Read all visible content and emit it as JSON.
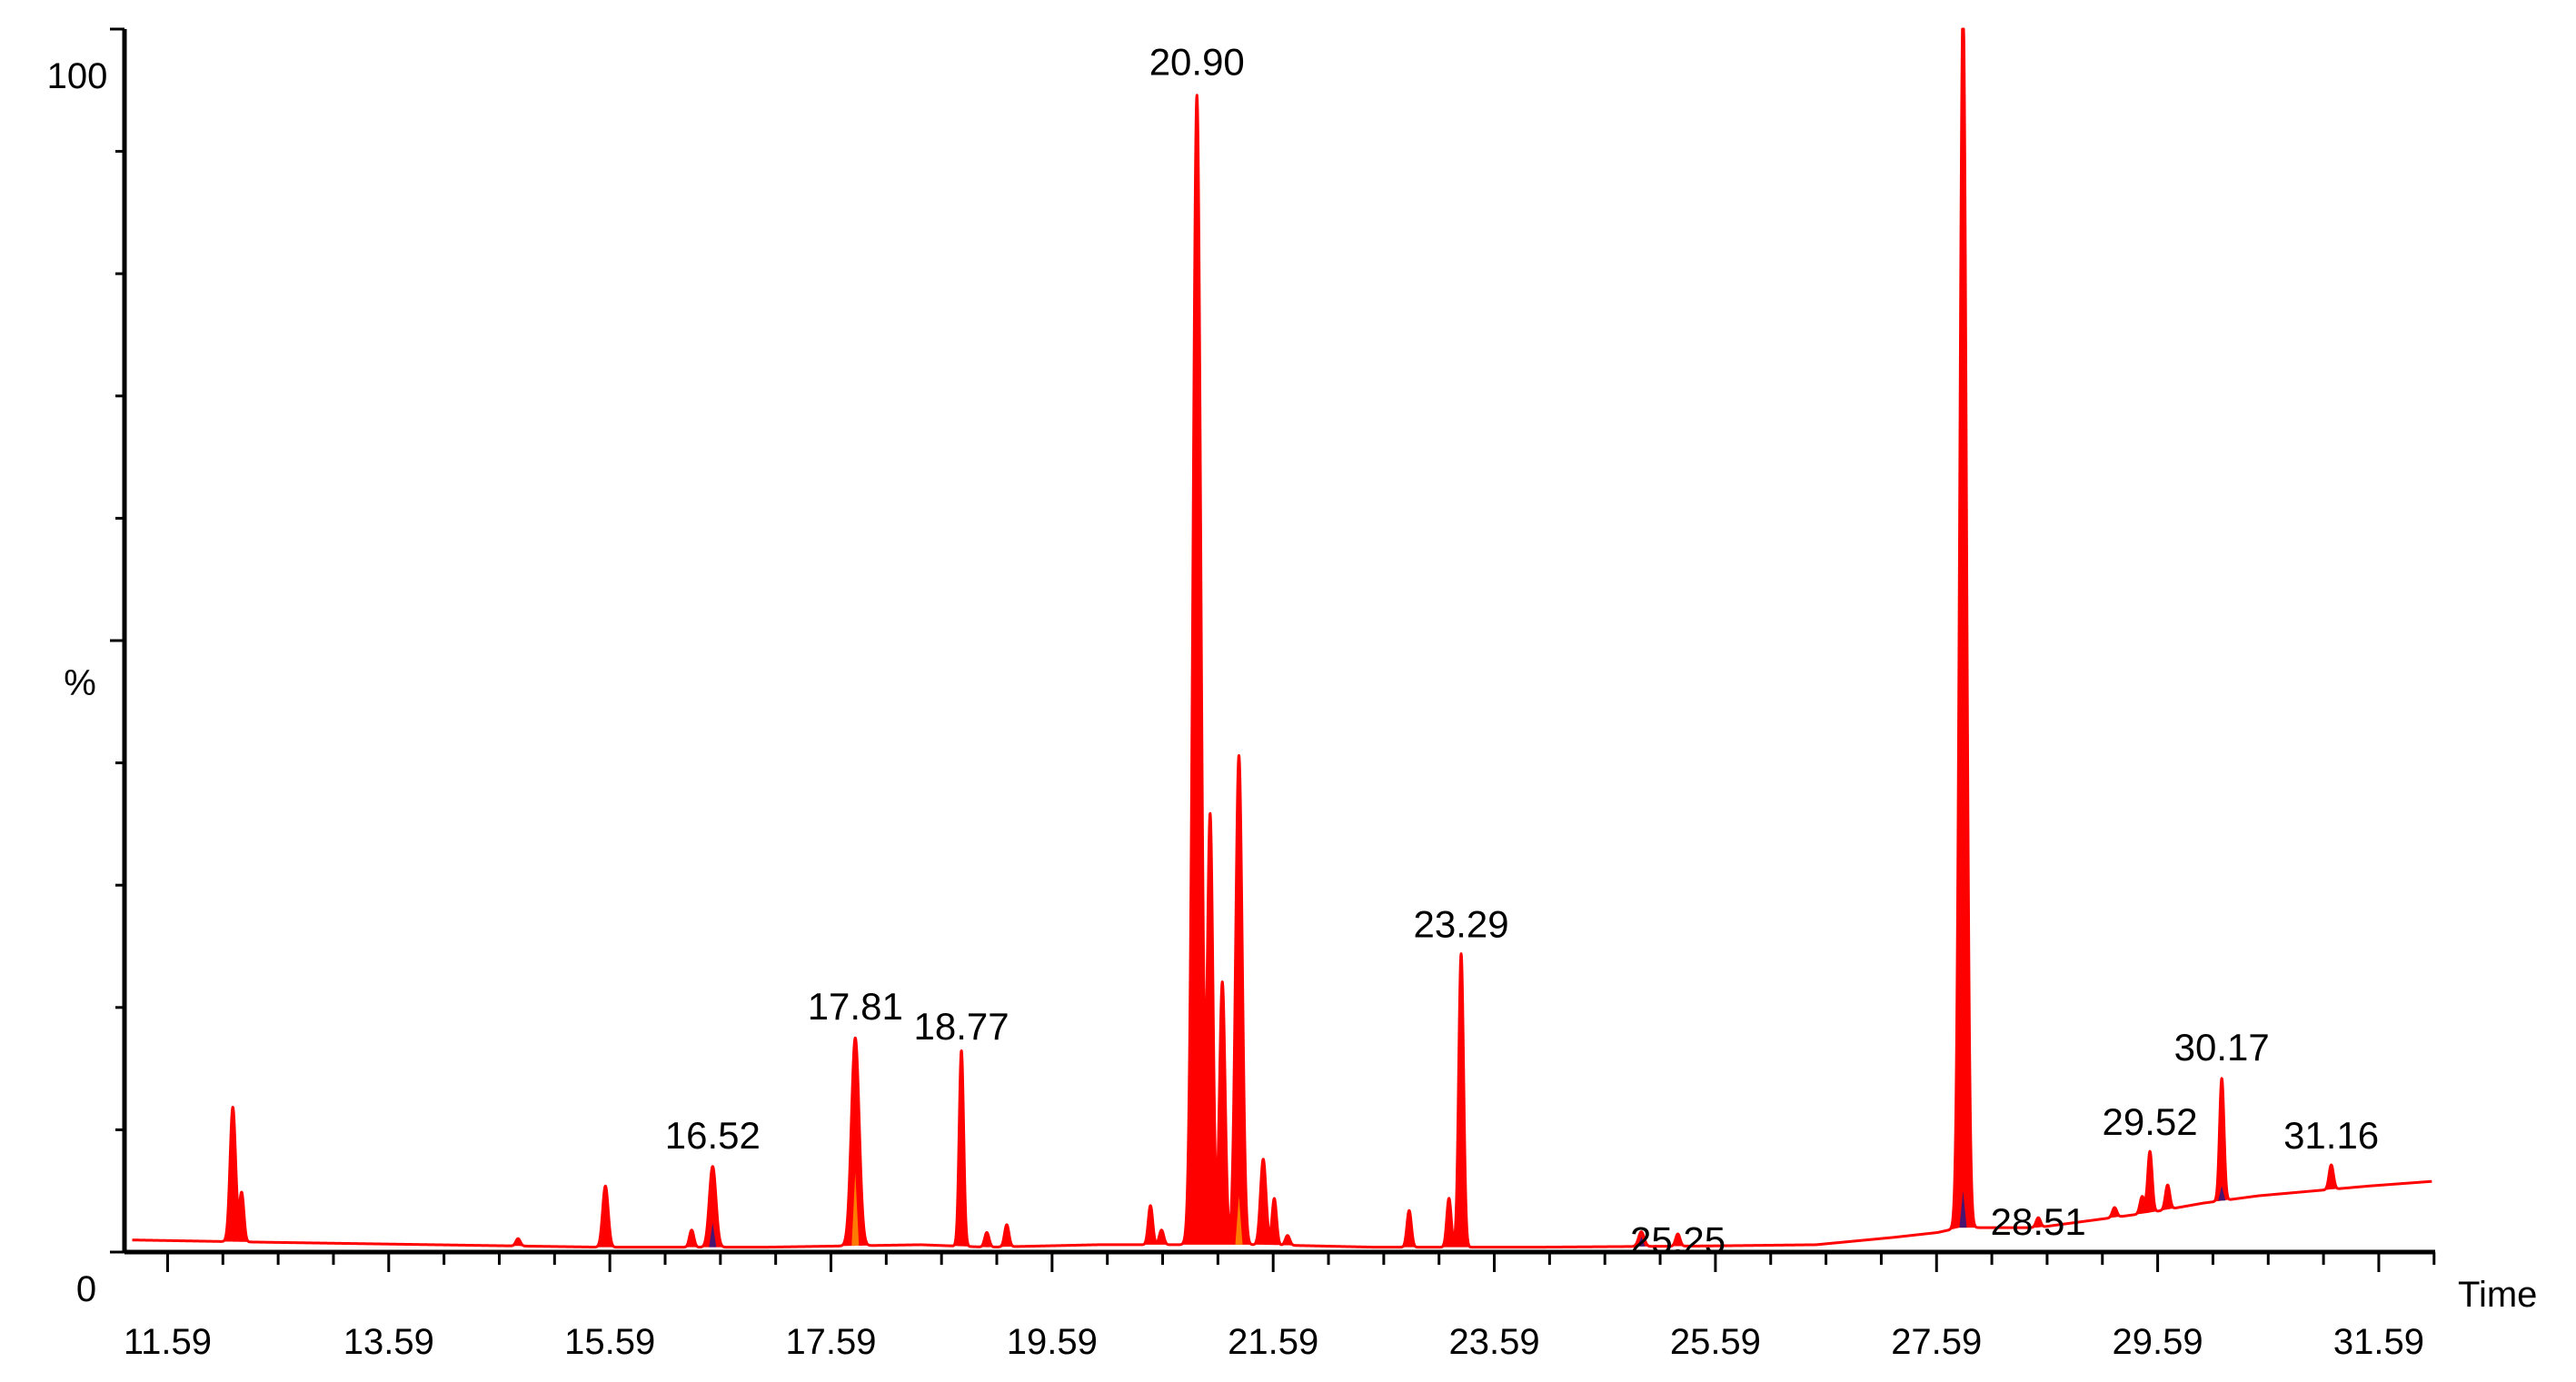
{
  "chart_data": {
    "type": "line",
    "title": "",
    "xlabel": "Time",
    "ylabel": "%",
    "xlim": [
      11.2,
      32.1
    ],
    "ylim": [
      0,
      100
    ],
    "x_ticks": [
      "11.59",
      "13.59",
      "15.59",
      "17.59",
      "19.59",
      "21.59",
      "23.59",
      "25.59",
      "27.59",
      "29.59",
      "31.59"
    ],
    "y_ticks": [
      "0",
      "100"
    ],
    "grid": false,
    "colors": {
      "trace": "#ff0000",
      "fill": "#ff0000",
      "overlay_blue": "#1a1a8c",
      "overlay_orange": "#ff9900",
      "axis": "#000000"
    },
    "baseline": [
      [
        11.2,
        1.0
      ],
      [
        12.5,
        0.8
      ],
      [
        14.0,
        0.6
      ],
      [
        15.5,
        0.4
      ],
      [
        17.0,
        0.4
      ],
      [
        18.4,
        0.6
      ],
      [
        19.0,
        0.4
      ],
      [
        20.0,
        0.6
      ],
      [
        21.5,
        0.6
      ],
      [
        22.5,
        0.4
      ],
      [
        24.0,
        0.4
      ],
      [
        25.5,
        0.5
      ],
      [
        26.5,
        0.6
      ],
      [
        27.2,
        1.2
      ],
      [
        27.6,
        1.6
      ],
      [
        27.8,
        2.0
      ],
      [
        28.5,
        2.0
      ],
      [
        29.0,
        2.6
      ],
      [
        29.5,
        3.2
      ],
      [
        30.0,
        4.0
      ],
      [
        30.5,
        4.6
      ],
      [
        31.0,
        5.0
      ],
      [
        31.5,
        5.4
      ],
      [
        32.1,
        5.8
      ]
    ],
    "peaks": [
      {
        "rt": 12.18,
        "height": 11.0,
        "width": 0.025
      },
      {
        "rt": 12.26,
        "height": 4.0,
        "width": 0.02
      },
      {
        "rt": 14.76,
        "height": 0.6,
        "width": 0.02
      },
      {
        "rt": 15.55,
        "height": 5.0,
        "width": 0.025
      },
      {
        "rt": 16.33,
        "height": 1.4,
        "width": 0.02
      },
      {
        "rt": 16.52,
        "height": 6.6,
        "width": 0.03
      },
      {
        "rt": 17.81,
        "height": 17.0,
        "width": 0.035
      },
      {
        "rt": 18.77,
        "height": 16.0,
        "width": 0.02
      },
      {
        "rt": 19.0,
        "height": 1.2,
        "width": 0.02
      },
      {
        "rt": 19.18,
        "height": 1.8,
        "width": 0.02
      },
      {
        "rt": 20.48,
        "height": 3.2,
        "width": 0.02
      },
      {
        "rt": 20.58,
        "height": 1.2,
        "width": 0.02
      },
      {
        "rt": 20.9,
        "height": 94.0,
        "width": 0.035
      },
      {
        "rt": 21.02,
        "height": 35.0,
        "width": 0.025
      },
      {
        "rt": 21.13,
        "height": 21.5,
        "width": 0.025
      },
      {
        "rt": 21.28,
        "height": 40.0,
        "width": 0.03
      },
      {
        "rt": 21.5,
        "height": 7.0,
        "width": 0.025
      },
      {
        "rt": 21.6,
        "height": 3.8,
        "width": 0.02
      },
      {
        "rt": 21.72,
        "height": 0.8,
        "width": 0.02
      },
      {
        "rt": 22.82,
        "height": 3.0,
        "width": 0.02
      },
      {
        "rt": 23.18,
        "height": 4.0,
        "width": 0.02
      },
      {
        "rt": 23.29,
        "height": 24.0,
        "width": 0.022
      },
      {
        "rt": 24.92,
        "height": 1.2,
        "width": 0.025
      },
      {
        "rt": 25.25,
        "height": 1.0,
        "width": 0.02
      },
      {
        "rt": 27.83,
        "height": 100.0,
        "width": 0.03
      },
      {
        "rt": 28.51,
        "height": 0.8,
        "width": 0.02
      },
      {
        "rt": 29.2,
        "height": 0.8,
        "width": 0.02
      },
      {
        "rt": 29.45,
        "height": 1.4,
        "width": 0.02
      },
      {
        "rt": 29.52,
        "height": 5.0,
        "width": 0.02
      },
      {
        "rt": 29.68,
        "height": 2.0,
        "width": 0.02
      },
      {
        "rt": 30.17,
        "height": 10.0,
        "width": 0.02
      },
      {
        "rt": 31.16,
        "height": 2.0,
        "width": 0.02
      }
    ],
    "annotations": [
      {
        "text": "20.90",
        "rt": 20.9
      },
      {
        "text": "23.29",
        "rt": 23.29
      },
      {
        "text": "17.81",
        "rt": 17.81
      },
      {
        "text": "18.77",
        "rt": 18.77
      },
      {
        "text": "30.17",
        "rt": 30.17
      },
      {
        "text": "16.52",
        "rt": 16.52
      },
      {
        "text": "29.52",
        "rt": 29.52
      },
      {
        "text": "31.16",
        "rt": 31.16
      },
      {
        "text": "28.51",
        "rt": 28.51
      },
      {
        "text": "25.25",
        "rt": 25.25
      }
    ]
  }
}
